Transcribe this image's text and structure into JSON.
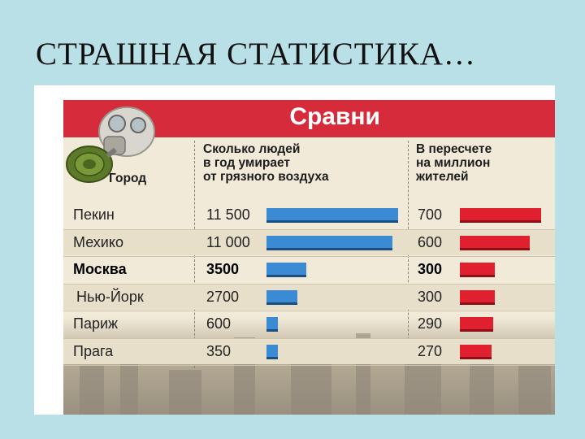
{
  "slide": {
    "title": "СТРАШНАЯ СТАТИСТИКА…"
  },
  "chart_data": {
    "type": "bar",
    "title": "Сравни",
    "columns": {
      "city": "Город",
      "deaths": "Сколько людей\nв год умирает\nот грязного воздуха",
      "per_million": "В пересчете\nна миллион\nжителей"
    },
    "categories": [
      "Пекин",
      "Мехико",
      "Москва",
      "Нью-Йорк",
      "Париж",
      "Прага"
    ],
    "series": [
      {
        "values": [
          11500,
          11000,
          3500,
          2700,
          600,
          350
        ],
        "labels": [
          "11 500",
          "11 000",
          "3500",
          "2700",
          "600",
          "350"
        ],
        "color": "#3a8ad4"
      },
      {
        "values": [
          700,
          600,
          300,
          300,
          290,
          270
        ],
        "labels": [
          "700",
          "600",
          "300",
          "300",
          "290",
          "270"
        ],
        "color": "#e0202e"
      }
    ],
    "highlight": "Москва",
    "xlim_deaths": [
      0,
      11500
    ],
    "xlim_per_million": [
      0,
      700
    ]
  },
  "icons": {
    "illustration": "gas-mask-icon"
  }
}
